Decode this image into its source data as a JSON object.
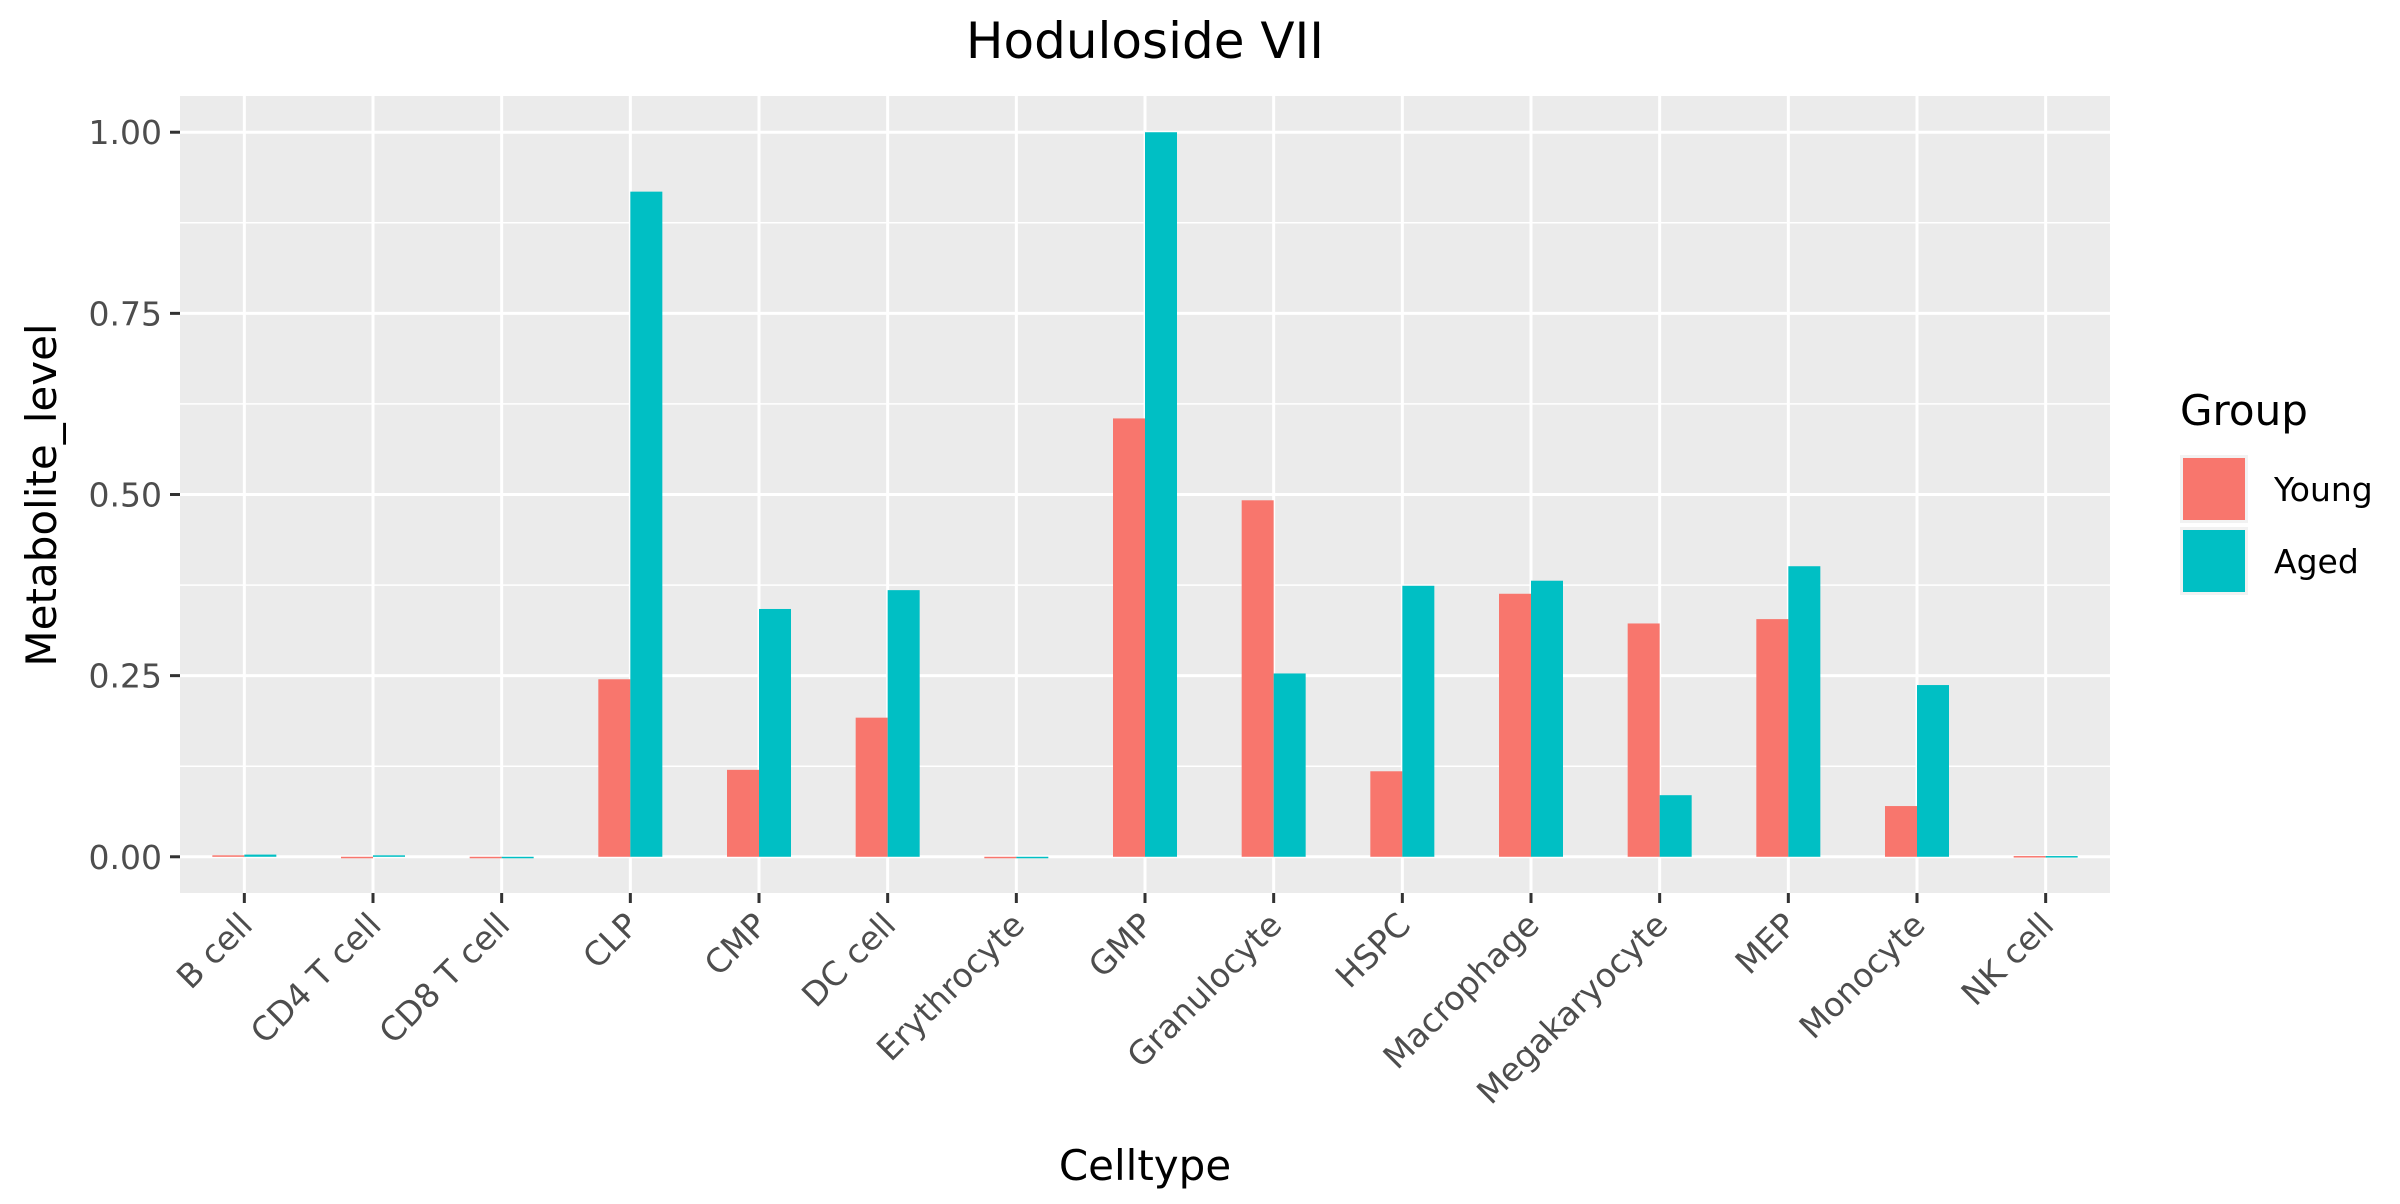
{
  "chart_data": {
    "type": "bar",
    "title": "Hoduloside VII",
    "xlabel": "Celltype",
    "ylabel": "Metabolite_level",
    "ylim": [
      -0.05,
      1.05
    ],
    "yticks": [
      0.0,
      0.25,
      0.5,
      0.75,
      1.0
    ],
    "ytick_labels": [
      "0.00",
      "0.25",
      "0.50",
      "0.75",
      "1.00"
    ],
    "grid": true,
    "legend": {
      "title": "Group",
      "position": "right"
    },
    "categories": [
      "B cell",
      "CD4 T cell",
      "CD8 T cell",
      "CLP",
      "CMP",
      "DC cell",
      "Erythrocyte",
      "GMP",
      "Granulocyte",
      "HSPC",
      "Macrophage",
      "Megakaryocyte",
      "MEP",
      "Monocyte",
      "NK cell"
    ],
    "series": [
      {
        "name": "Young",
        "color": "#F8766D",
        "values": [
          0.002,
          0.0,
          0.0,
          0.245,
          0.12,
          0.192,
          0.0,
          0.605,
          0.492,
          0.118,
          0.363,
          0.322,
          0.328,
          0.07,
          0.001
        ]
      },
      {
        "name": "Aged",
        "color": "#00BFC4",
        "values": [
          0.003,
          0.002,
          0.0,
          0.918,
          0.342,
          0.368,
          0.0,
          1.0,
          0.253,
          0.374,
          0.381,
          0.085,
          0.401,
          0.237,
          0.001
        ]
      }
    ]
  }
}
